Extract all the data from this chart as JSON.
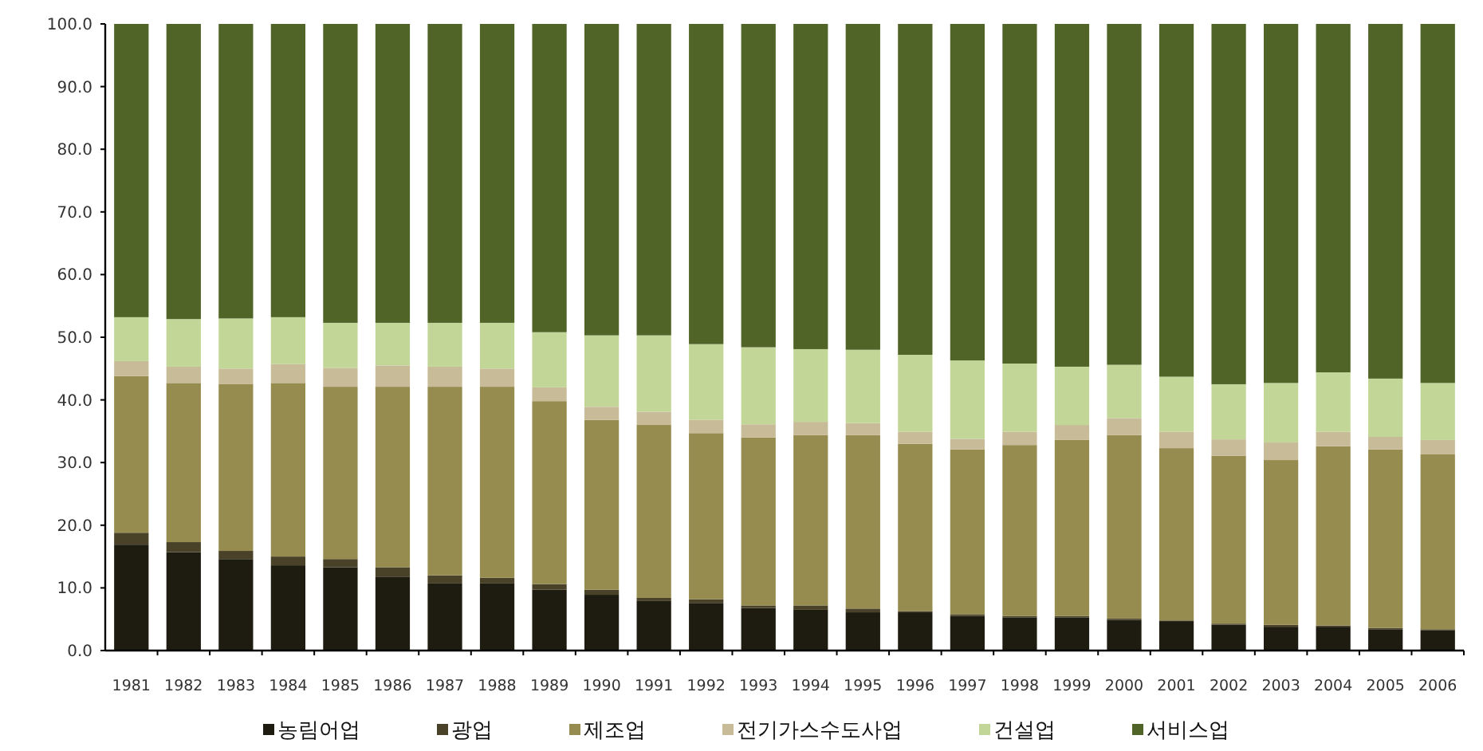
{
  "chart_data": {
    "type": "bar",
    "stacked": true,
    "legend": "bottom",
    "grid": false,
    "categories": [
      "1981",
      "1982",
      "1983",
      "1984",
      "1985",
      "1986",
      "1987",
      "1988",
      "1989",
      "1990",
      "1991",
      "1992",
      "1993",
      "1994",
      "1995",
      "1996",
      "1997",
      "1998",
      "1999",
      "2000",
      "2001",
      "2002",
      "2003",
      "2004",
      "2005",
      "2006"
    ],
    "ylim": [
      0,
      100
    ],
    "yticks": [
      {
        "value": 0,
        "label": "0.0"
      },
      {
        "value": 10,
        "label": "10.0"
      },
      {
        "value": 20,
        "label": "20.0"
      },
      {
        "value": 30,
        "label": "30.0"
      },
      {
        "value": 40,
        "label": "40.0"
      },
      {
        "value": 50,
        "label": "50.0"
      },
      {
        "value": 60,
        "label": "60.0"
      },
      {
        "value": 70,
        "label": "70.0"
      },
      {
        "value": 80,
        "label": "80.0"
      },
      {
        "value": 90,
        "label": "90.0"
      },
      {
        "value": 100,
        "label": "100.0"
      }
    ],
    "series": [
      {
        "name": "농림어업",
        "color": "#1e1c10",
        "values": [
          16.9,
          15.7,
          14.6,
          13.6,
          13.3,
          11.8,
          10.7,
          10.7,
          9.7,
          8.9,
          7.9,
          7.6,
          6.8,
          6.5,
          6.1,
          6.1,
          5.5,
          5.3,
          5.3,
          4.9,
          4.7,
          4.1,
          3.8,
          3.8,
          3.4,
          3.2
        ]
      },
      {
        "name": "광업",
        "color": "#4a4228",
        "values": [
          1.9,
          1.6,
          1.3,
          1.4,
          1.3,
          1.5,
          1.3,
          0.9,
          0.9,
          0.8,
          0.5,
          0.6,
          0.4,
          0.7,
          0.6,
          0.2,
          0.3,
          0.2,
          0.2,
          0.2,
          0.1,
          0.2,
          0.3,
          0.2,
          0.2,
          0.2
        ]
      },
      {
        "name": "제조업",
        "color": "#968c50",
        "values": [
          25.0,
          25.4,
          26.6,
          27.7,
          27.5,
          28.8,
          30.1,
          30.5,
          29.2,
          27.1,
          27.6,
          26.5,
          26.8,
          27.2,
          27.7,
          26.7,
          26.3,
          27.3,
          28.1,
          29.3,
          27.5,
          26.8,
          26.3,
          28.6,
          28.5,
          27.9
        ]
      },
      {
        "name": "전기가스수도사업",
        "color": "#c8bc98",
        "values": [
          2.4,
          2.6,
          2.5,
          3.0,
          3.0,
          3.4,
          3.2,
          2.9,
          2.2,
          2.1,
          2.1,
          2.1,
          2.1,
          2.1,
          1.9,
          1.9,
          1.7,
          2.1,
          2.4,
          2.7,
          2.6,
          2.6,
          2.8,
          2.3,
          2.0,
          2.3
        ]
      },
      {
        "name": "건설업",
        "color": "#c2d698",
        "values": [
          7.0,
          7.6,
          8.0,
          7.5,
          7.2,
          6.8,
          7.0,
          7.3,
          8.8,
          11.4,
          12.2,
          12.1,
          12.3,
          11.6,
          11.7,
          12.3,
          12.5,
          10.9,
          9.3,
          8.5,
          8.8,
          8.8,
          9.5,
          9.5,
          9.3,
          9.1
        ]
      },
      {
        "name": "서비스업",
        "color": "#506428",
        "values": [
          46.8,
          47.1,
          47.0,
          46.8,
          47.7,
          47.7,
          47.7,
          47.7,
          49.2,
          49.7,
          49.7,
          51.1,
          51.6,
          51.9,
          52.0,
          52.8,
          53.7,
          54.2,
          54.7,
          54.4,
          56.3,
          57.5,
          57.3,
          55.6,
          56.6,
          57.3
        ]
      }
    ]
  }
}
